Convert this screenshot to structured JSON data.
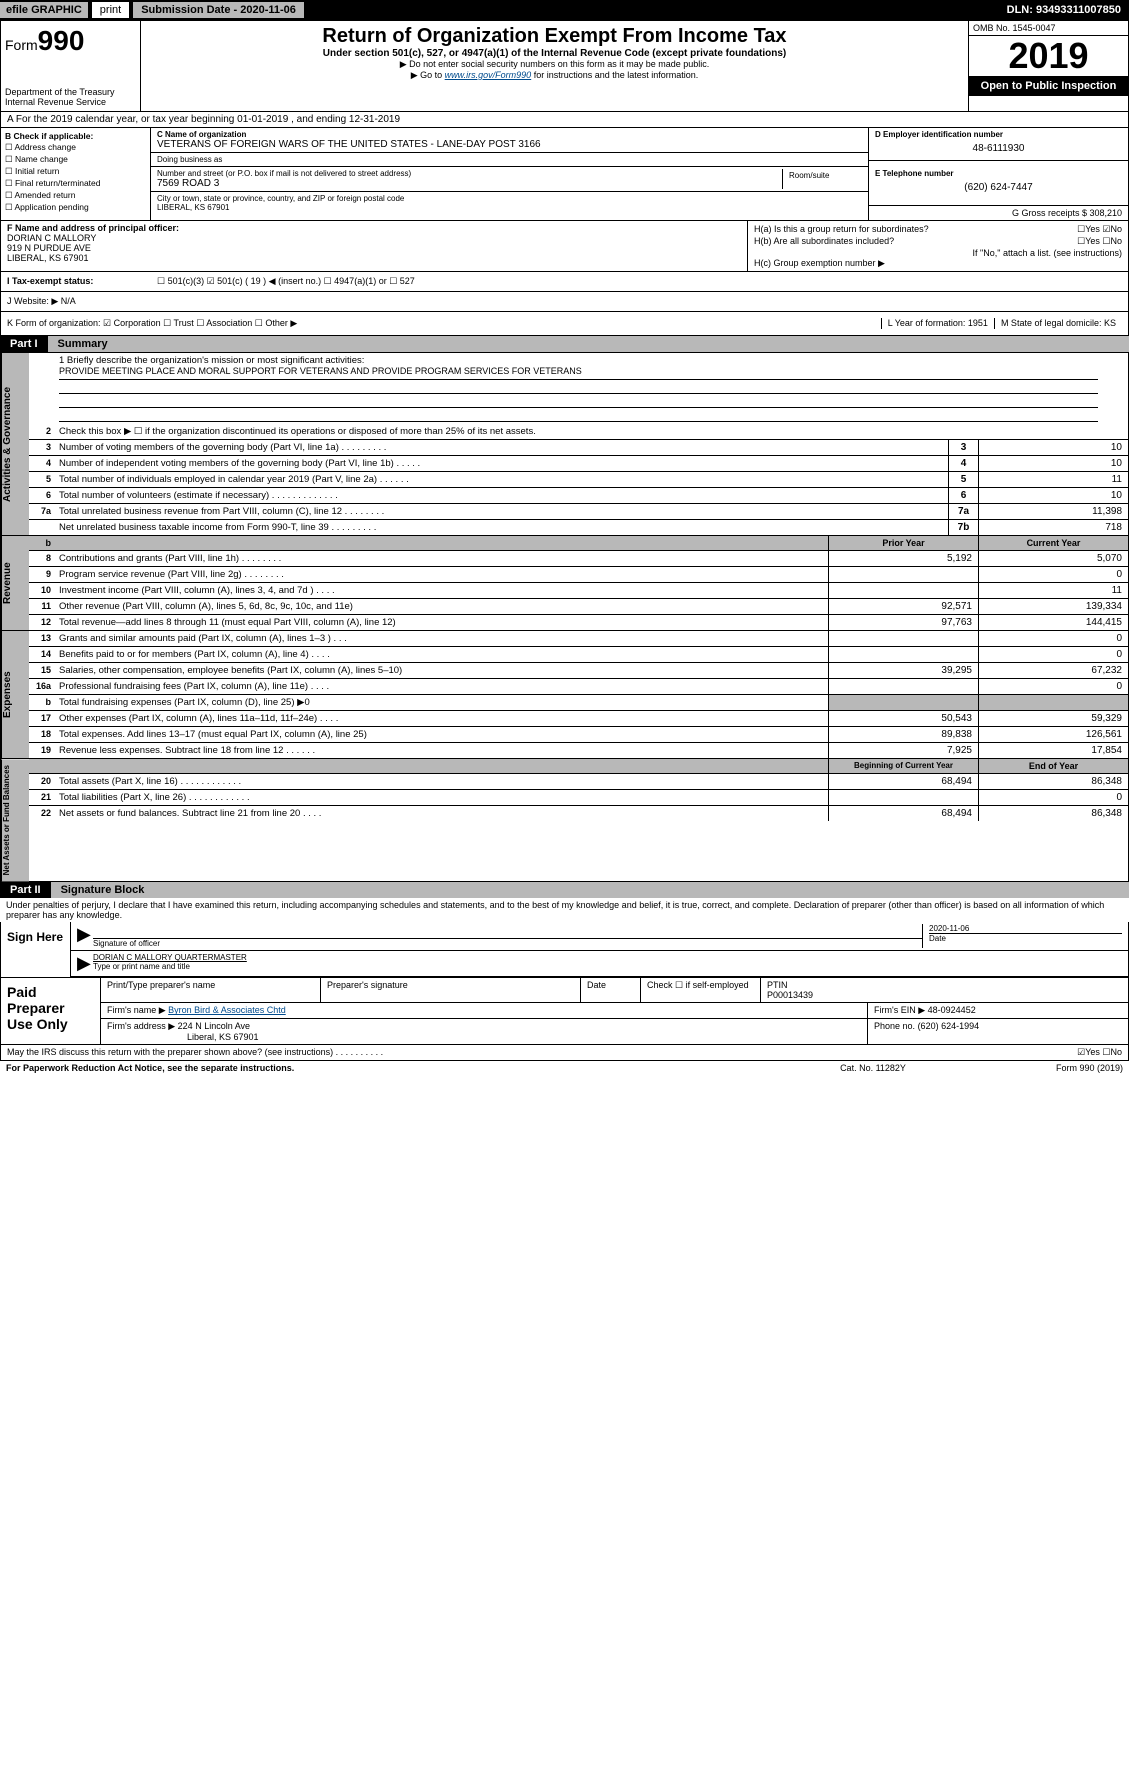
{
  "top": {
    "efile": "efile GRAPHIC",
    "print": "print",
    "subdate_label": "Submission Date - 2020-11-06",
    "dln": "DLN: 93493311007850"
  },
  "header": {
    "form_prefix": "Form",
    "form_num": "990",
    "title": "Return of Organization Exempt From Income Tax",
    "sub": "Under section 501(c), 527, or 4947(a)(1) of the Internal Revenue Code (except private foundations)",
    "note1": "▶ Do not enter social security numbers on this form as it may be made public.",
    "note2_pre": "▶ Go to ",
    "note2_link": "www.irs.gov/Form990",
    "note2_post": " for instructions and the latest information.",
    "dept": "Department of the Treasury\nInternal Revenue Service",
    "omb": "OMB No. 1545-0047",
    "year": "2019",
    "open": "Open to Public Inspection"
  },
  "rowA": "A For the 2019 calendar year, or tax year beginning 01-01-2019    , and ending 12-31-2019",
  "colB": {
    "label": "B Check if applicable:",
    "items": [
      "☐ Address change",
      "☐ Name change",
      "☐ Initial return",
      "☐ Final return/terminated",
      "☐ Amended return",
      "☐ Application pending"
    ]
  },
  "cname": {
    "label": "C Name of organization",
    "value": "VETERANS OF FOREIGN WARS OF THE UNITED STATES - LANE-DAY POST 3166",
    "dba_label": "Doing business as",
    "street_label": "Number and street (or P.O. box if mail is not delivered to street address)",
    "street": "7569 ROAD 3",
    "room_label": "Room/suite",
    "city_label": "City or town, state or province, country, and ZIP or foreign postal code",
    "city": "LIBERAL, KS  67901"
  },
  "de": {
    "ein_label": "D Employer identification number",
    "ein": "48-6111930",
    "tel_label": "E Telephone number",
    "tel": "(620) 624-7447",
    "gross": "G Gross receipts $ 308,210"
  },
  "f": {
    "label": "F  Name and address of principal officer:",
    "name": "DORIAN C MALLORY",
    "addr1": "919 N PURDUE AVE",
    "addr2": "LIBERAL, KS  67901"
  },
  "h": {
    "a": "H(a)  Is this a group return for subordinates?",
    "a_ans": "☐Yes ☑No",
    "b": "H(b)  Are all subordinates included?",
    "b_ans": "☐Yes ☐No",
    "b_note": "If \"No,\" attach a list. (see instructions)",
    "c": "H(c)  Group exemption number ▶"
  },
  "rowI": {
    "label": "I  Tax-exempt status:",
    "opts": "☐ 501(c)(3)   ☑  501(c) ( 19 ) ◀ (insert no.)   ☐ 4947(a)(1) or   ☐ 527"
  },
  "rowJ": "J  Website: ▶  N/A",
  "rowK": {
    "k": "K Form of organization:  ☑ Corporation  ☐ Trust  ☐ Association  ☐ Other ▶",
    "l": "L Year of formation: 1951",
    "m": "M State of legal domicile: KS"
  },
  "partI": {
    "num": "Part I",
    "title": "Summary"
  },
  "gov": {
    "vtab": "Activities & Governance",
    "r1_label": "1  Briefly describe the organization's mission or most significant activities:",
    "r1_text": "PROVIDE MEETING PLACE AND MORAL SUPPORT FOR VETERANS AND PROVIDE PROGRAM SERVICES FOR VETERANS",
    "r2": "Check this box ▶ ☐  if the organization discontinued its operations or disposed of more than 25% of its net assets.",
    "rows": [
      {
        "n": "3",
        "t": "Number of voting members of the governing body (Part VI, line 1a)   .    .    .    .    .    .    .    .    .",
        "b": "3",
        "v": "10"
      },
      {
        "n": "4",
        "t": "Number of independent voting members of the governing body (Part VI, line 1b)   .    .    .    .    .",
        "b": "4",
        "v": "10"
      },
      {
        "n": "5",
        "t": "Total number of individuals employed in calendar year 2019 (Part V, line 2a)   .    .    .    .    .    .",
        "b": "5",
        "v": "11"
      },
      {
        "n": "6",
        "t": "Total number of volunteers (estimate if necessary)   .    .    .    .    .    .    .    .    .    .    .    .    .",
        "b": "6",
        "v": "10"
      },
      {
        "n": "7a",
        "t": "Total unrelated business revenue from Part VIII, column (C), line 12   .    .    .    .    .    .    .    .",
        "b": "7a",
        "v": "11,398"
      },
      {
        "n": "",
        "t": "Net unrelated business taxable income from Form 990-T, line 39   .    .    .    .    .    .    .    .    .",
        "b": "7b",
        "v": "718"
      }
    ]
  },
  "rev": {
    "vtab": "Revenue",
    "hdr_prior": "Prior Year",
    "hdr_curr": "Current Year",
    "rows": [
      {
        "n": "8",
        "t": "Contributions and grants (Part VIII, line 1h)   .    .    .    .    .    .    .    .",
        "p": "5,192",
        "c": "5,070"
      },
      {
        "n": "9",
        "t": "Program service revenue (Part VIII, line 2g)   .    .    .    .    .    .    .    .",
        "p": "",
        "c": "0"
      },
      {
        "n": "10",
        "t": "Investment income (Part VIII, column (A), lines 3, 4, and 7d )   .    .    .    .",
        "p": "",
        "c": "11"
      },
      {
        "n": "11",
        "t": "Other revenue (Part VIII, column (A), lines 5, 6d, 8c, 9c, 10c, and 11e)",
        "p": "92,571",
        "c": "139,334"
      },
      {
        "n": "12",
        "t": "Total revenue—add lines 8 through 11 (must equal Part VIII, column (A), line 12)",
        "p": "97,763",
        "c": "144,415"
      }
    ]
  },
  "exp": {
    "vtab": "Expenses",
    "rows": [
      {
        "n": "13",
        "t": "Grants and similar amounts paid (Part IX, column (A), lines 1–3 )   .    .    .",
        "p": "",
        "c": "0"
      },
      {
        "n": "14",
        "t": "Benefits paid to or for members (Part IX, column (A), line 4)   .    .    .    .",
        "p": "",
        "c": "0"
      },
      {
        "n": "15",
        "t": "Salaries, other compensation, employee benefits (Part IX, column (A), lines 5–10)",
        "p": "39,295",
        "c": "67,232"
      },
      {
        "n": "16a",
        "t": "Professional fundraising fees (Part IX, column (A), line 11e)   .    .    .    .",
        "p": "",
        "c": "0"
      },
      {
        "n": "b",
        "t": "Total fundraising expenses (Part IX, column (D), line 25) ▶0",
        "p": "shade",
        "c": "shade"
      },
      {
        "n": "17",
        "t": "Other expenses (Part IX, column (A), lines 11a–11d, 11f–24e)   .    .    .    .",
        "p": "50,543",
        "c": "59,329"
      },
      {
        "n": "18",
        "t": "Total expenses. Add lines 13–17 (must equal Part IX, column (A), line 25)",
        "p": "89,838",
        "c": "126,561"
      },
      {
        "n": "19",
        "t": "Revenue less expenses. Subtract line 18 from line 12   .    .    .    .    .    .",
        "p": "7,925",
        "c": "17,854"
      }
    ]
  },
  "net": {
    "vtab": "Net Assets or Fund Balances",
    "hdr_beg": "Beginning of Current Year",
    "hdr_end": "End of Year",
    "rows": [
      {
        "n": "20",
        "t": "Total assets (Part X, line 16)   .    .    .    .    .    .    .    .    .    .    .    .",
        "p": "68,494",
        "c": "86,348"
      },
      {
        "n": "21",
        "t": "Total liabilities (Part X, line 26)   .    .    .    .    .    .    .    .    .    .    .    .",
        "p": "",
        "c": "0"
      },
      {
        "n": "22",
        "t": "Net assets or fund balances. Subtract line 21 from line 20   .    .    .    .",
        "p": "68,494",
        "c": "86,348"
      }
    ]
  },
  "partII": {
    "num": "Part II",
    "title": "Signature Block"
  },
  "sig": {
    "decl": "Under penalties of perjury, I declare that I have examined this return, including accompanying schedules and statements, and to the best of my knowledge and belief, it is true, correct, and complete. Declaration of preparer (other than officer) is based on all information of which preparer has any knowledge.",
    "sign_here": "Sign Here",
    "sig_label": "Signature of officer",
    "date_val": "2020-11-06",
    "date_label": "Date",
    "name_val": "DORIAN C MALLORY QUARTERMASTER",
    "name_label": "Type or print name and title"
  },
  "paid": {
    "label": "Paid Preparer Use Only",
    "h1": "Print/Type preparer's name",
    "h2": "Preparer's signature",
    "h3": "Date",
    "h4": "Check ☐ if self-employed",
    "h5_label": "PTIN",
    "h5": "P00013439",
    "firm_label": "Firm's name    ▶",
    "firm": "Byron Bird & Associates Chtd",
    "ein_label": "Firm's EIN ▶",
    "ein": "48-0924452",
    "addr_label": "Firm's address ▶",
    "addr": "224 N Lincoln Ave",
    "addr2": "Liberal, KS  67901",
    "phone_label": "Phone no.",
    "phone": "(620) 624-1994"
  },
  "footer": {
    "discuss": "May the IRS discuss this return with the preparer shown above? (see instructions)   .    .    .    .    .    .    .    .    .    .",
    "yn": "☑Yes  ☐No",
    "pra": "For Paperwork Reduction Act Notice, see the separate instructions.",
    "cat": "Cat. No. 11282Y",
    "form": "Form 990 (2019)"
  }
}
